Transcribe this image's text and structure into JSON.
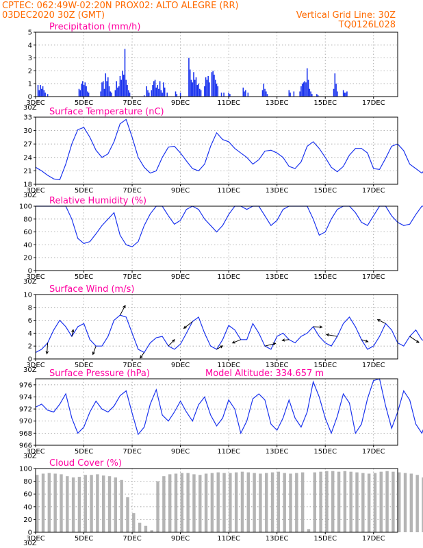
{
  "header": {
    "line1": "CPTEC:   062:49W-02:20N   PROX02: ALTO ALEGRE (RR)",
    "line2_left": "03DEC2020 30Z (GMT)",
    "line2_right": "Vertical Grid Line: 30Z",
    "model": "TQ0126L028"
  },
  "colors": {
    "series": "#1a33ee",
    "bars": "#1a33ee",
    "cloud": "#b4b4b4",
    "header": "#ff6a00",
    "title": "#ff00a0"
  },
  "x_axis": {
    "labels": [
      "3DEC",
      "5DEC",
      "7DEC",
      "9DEC",
      "11DEC",
      "13DEC",
      "15DEC",
      "17DEC"
    ],
    "label_days": [
      0,
      2,
      4,
      6,
      8,
      10,
      12,
      14
    ],
    "stray_label": "30Z",
    "range_days": [
      0,
      15
    ]
  },
  "chart_data": [
    {
      "type": "bar",
      "title": "Precipitation (mm/h)",
      "ylim": [
        0,
        5
      ],
      "yticks": [
        0,
        1,
        2,
        3,
        4,
        5
      ],
      "grid": true,
      "bars": [
        [
          0.1,
          0.9
        ],
        [
          0.15,
          0.5
        ],
        [
          0.2,
          0.9
        ],
        [
          0.25,
          0.6
        ],
        [
          0.3,
          0.8
        ],
        [
          0.35,
          0.5
        ],
        [
          0.4,
          0.3
        ],
        [
          0.5,
          0.2
        ],
        [
          1.8,
          0.6
        ],
        [
          1.85,
          0.5
        ],
        [
          1.9,
          1.0
        ],
        [
          1.95,
          1.2
        ],
        [
          2.0,
          0.9
        ],
        [
          2.05,
          1.1
        ],
        [
          2.1,
          0.8
        ],
        [
          2.15,
          0.4
        ],
        [
          2.2,
          0.3
        ],
        [
          2.7,
          0.4
        ],
        [
          2.75,
          1.1
        ],
        [
          2.8,
          1.2
        ],
        [
          2.85,
          0.6
        ],
        [
          2.9,
          1.8
        ],
        [
          2.95,
          1.2
        ],
        [
          3.0,
          1.5
        ],
        [
          3.05,
          0.8
        ],
        [
          3.1,
          0.4
        ],
        [
          3.15,
          0.3
        ],
        [
          3.3,
          0.5
        ],
        [
          3.35,
          1.2
        ],
        [
          3.4,
          0.7
        ],
        [
          3.45,
          0.8
        ],
        [
          3.5,
          1.6
        ],
        [
          3.55,
          1.3
        ],
        [
          3.6,
          2.0
        ],
        [
          3.65,
          1.7
        ],
        [
          3.7,
          3.7
        ],
        [
          3.75,
          1.3
        ],
        [
          3.8,
          0.9
        ],
        [
          3.85,
          0.5
        ],
        [
          3.9,
          0.3
        ],
        [
          4.5,
          0.1
        ],
        [
          4.6,
          0.8
        ],
        [
          4.65,
          0.5
        ],
        [
          4.7,
          0.3
        ],
        [
          4.8,
          0.5
        ],
        [
          4.85,
          0.9
        ],
        [
          4.9,
          1.2
        ],
        [
          4.95,
          1.3
        ],
        [
          5.0,
          0.7
        ],
        [
          5.05,
          0.9
        ],
        [
          5.1,
          0.6
        ],
        [
          5.15,
          1.2
        ],
        [
          5.2,
          0.5
        ],
        [
          5.25,
          0.3
        ],
        [
          5.3,
          1.1
        ],
        [
          5.35,
          0.7
        ],
        [
          5.45,
          0.3
        ],
        [
          5.8,
          0.4
        ],
        [
          5.85,
          0.2
        ],
        [
          6.0,
          0.3
        ],
        [
          6.35,
          3.0
        ],
        [
          6.4,
          2.1
        ],
        [
          6.45,
          1.3
        ],
        [
          6.5,
          1.1
        ],
        [
          6.55,
          1.9
        ],
        [
          6.6,
          1.3
        ],
        [
          6.65,
          1.5
        ],
        [
          6.7,
          0.9
        ],
        [
          6.75,
          1.0
        ],
        [
          6.8,
          0.6
        ],
        [
          6.85,
          0.5
        ],
        [
          7.0,
          0.8
        ],
        [
          7.05,
          1.5
        ],
        [
          7.1,
          1.3
        ],
        [
          7.15,
          1.6
        ],
        [
          7.2,
          1.1
        ],
        [
          7.3,
          1.9
        ],
        [
          7.35,
          2.0
        ],
        [
          7.4,
          1.7
        ],
        [
          7.45,
          1.3
        ],
        [
          7.5,
          1.0
        ],
        [
          7.55,
          0.8
        ],
        [
          7.7,
          0.3
        ],
        [
          7.8,
          0.3
        ],
        [
          8.0,
          0.3
        ],
        [
          8.05,
          0.2
        ],
        [
          8.6,
          0.7
        ],
        [
          8.65,
          0.4
        ],
        [
          8.7,
          0.5
        ],
        [
          8.8,
          0.3
        ],
        [
          9.4,
          0.5
        ],
        [
          9.45,
          1.0
        ],
        [
          9.5,
          0.6
        ],
        [
          9.55,
          0.4
        ],
        [
          9.6,
          0.2
        ],
        [
          10.5,
          0.5
        ],
        [
          10.55,
          0.3
        ],
        [
          10.7,
          0.4
        ],
        [
          10.95,
          0.4
        ],
        [
          11.0,
          0.8
        ],
        [
          11.05,
          1.0
        ],
        [
          11.1,
          1.1
        ],
        [
          11.15,
          1.2
        ],
        [
          11.2,
          1.1
        ],
        [
          11.25,
          2.2
        ],
        [
          11.3,
          1.3
        ],
        [
          11.35,
          0.6
        ],
        [
          11.4,
          0.4
        ],
        [
          11.45,
          0.2
        ],
        [
          11.65,
          0.2
        ],
        [
          11.7,
          0.1
        ],
        [
          12.35,
          0.6
        ],
        [
          12.4,
          1.8
        ],
        [
          12.45,
          1.0
        ],
        [
          12.5,
          0.4
        ],
        [
          12.75,
          0.5
        ],
        [
          12.8,
          0.3
        ],
        [
          12.85,
          0.3
        ],
        [
          12.9,
          0.4
        ]
      ]
    },
    {
      "type": "line",
      "title": "Surface Temperature (nC)",
      "ylim": [
        18,
        33
      ],
      "yticks": [
        18,
        21,
        24,
        27,
        30,
        33
      ],
      "grid": true,
      "period_days": 0.25,
      "values": [
        21.8,
        21,
        20,
        19.2,
        19,
        22.5,
        27,
        30.2,
        30.7,
        28.5,
        25.6,
        24,
        24.8,
        27.5,
        31.5,
        32.5,
        28.5,
        24,
        21.8,
        20.5,
        21,
        24,
        26.3,
        26.5,
        25,
        23.2,
        21.5,
        21,
        22.5,
        26.5,
        29.5,
        28,
        27.5,
        26,
        25,
        24,
        22.5,
        23.5,
        25.4,
        25.6,
        25,
        24,
        22,
        21.5,
        23,
        26.5,
        27.5,
        26,
        24,
        21.8,
        20.8,
        22,
        24.5,
        26,
        26,
        25,
        21.5,
        21.3,
        23.8,
        26.5,
        27,
        25.5,
        22.5,
        21.5,
        20.5,
        22,
        24.5,
        29,
        30,
        28,
        26,
        24.3,
        21.3,
        20.5,
        22.5,
        27,
        29.5,
        28.5,
        26,
        24.5,
        21.5,
        20.5,
        23,
        27.2,
        31,
        29,
        26.5,
        24.5,
        21.5,
        20.5,
        21.5,
        27.5,
        29,
        26.5,
        25,
        22,
        21.5,
        23,
        27.5,
        29.5,
        28,
        26,
        24,
        21.5,
        21,
        23,
        28,
        30,
        28,
        25,
        22,
        21,
        21.5,
        26,
        29.5,
        30.5,
        27.5,
        25,
        22,
        21,
        22,
        28,
        30.5,
        29.5,
        26.5,
        24,
        21.5,
        21,
        23,
        27.5,
        29.5,
        28,
        26
      ]
    },
    {
      "type": "line",
      "title": "Relative Humidity (%)",
      "ylim": [
        0,
        100
      ],
      "yticks": [
        0,
        20,
        40,
        60,
        80,
        100
      ],
      "grid": true,
      "period_days": 0.25,
      "values": [
        100,
        100,
        100,
        100,
        100,
        100,
        80,
        50,
        42,
        45,
        57,
        70,
        80,
        90,
        55,
        40,
        37,
        45,
        70,
        88,
        100,
        100,
        85,
        72,
        78,
        95,
        100,
        95,
        80,
        70,
        60,
        70,
        87,
        100,
        100,
        95,
        100,
        100,
        85,
        70,
        78,
        95,
        100,
        100,
        100,
        100,
        80,
        55,
        60,
        80,
        95,
        100,
        100,
        90,
        75,
        70,
        85,
        100,
        100,
        85,
        75,
        70,
        72,
        87,
        100,
        100,
        95,
        80,
        65,
        55,
        70,
        90,
        100,
        100,
        80,
        48,
        55,
        75,
        100,
        100,
        95,
        75,
        60,
        72,
        90,
        100,
        100,
        100,
        85,
        55,
        42,
        50,
        80,
        100,
        100,
        85,
        62,
        55,
        70,
        100,
        100,
        95,
        70,
        48,
        45,
        62,
        100,
        100,
        90,
        70,
        100,
        100,
        100,
        100,
        90,
        65,
        50,
        50,
        65,
        72,
        80,
        90,
        60,
        50,
        58,
        75,
        80,
        70,
        60,
        47,
        50
      ]
    },
    {
      "type": "line",
      "title": "Surface Wind (m/s)",
      "ylim": [
        0,
        10
      ],
      "yticks": [
        0,
        2,
        4,
        6,
        8,
        10
      ],
      "grid": true,
      "period_days": 0.25,
      "values": [
        1,
        1.5,
        2.5,
        4.5,
        6,
        5,
        3.5,
        5,
        5.5,
        3,
        2,
        2,
        3.5,
        6,
        6.8,
        6.5,
        4,
        1.5,
        1,
        2.5,
        3.3,
        3.5,
        2,
        1.5,
        2.3,
        4,
        5.8,
        6.5,
        4,
        2,
        1.5,
        3,
        5.2,
        4.5,
        3,
        3,
        5.5,
        4,
        2,
        1.5,
        3.5,
        4,
        3,
        2.5,
        3.5,
        4,
        5,
        3.5,
        2.5,
        2,
        3.5,
        5.5,
        6.5,
        5,
        3,
        1.5,
        2,
        3.5,
        5.5,
        4.5,
        2.5,
        2,
        3.5,
        4.5,
        3,
        2.5,
        2.5,
        3,
        3.5,
        5,
        6.8,
        5,
        2,
        1.5,
        2,
        3,
        4,
        4.5,
        5.5,
        9,
        7.5,
        5,
        3,
        2.5,
        3,
        5,
        6,
        3.5,
        2,
        1.5,
        2.5,
        4.5,
        5,
        4,
        2.5,
        2.5,
        3.5,
        5,
        4.5,
        3,
        2,
        1.5,
        2.5,
        4.5,
        5.5,
        4.5,
        3,
        2.5,
        2,
        2,
        4,
        6,
        5,
        3,
        1.5,
        2,
        3.5,
        5,
        4,
        3,
        2,
        1.5,
        2,
        4,
        5.5,
        4.5,
        3,
        2.5,
        3.5,
        5.5,
        6.5,
        4,
        1.5
      ],
      "arrows_label": "wind direction vectors"
    },
    {
      "type": "line",
      "title": "Surface Pressure (hPa)",
      "annotation": "Model Altitude: 334.657  m",
      "ylim": [
        966,
        977
      ],
      "yticks": [
        966,
        968,
        970,
        972,
        974,
        976
      ],
      "grid": true,
      "period_days": 0.25,
      "values": [
        972.3,
        972.8,
        971.8,
        971.5,
        972.8,
        974.5,
        970.5,
        968,
        969,
        971.5,
        973.3,
        972,
        971.5,
        972.5,
        974.2,
        975,
        971.3,
        967.8,
        969,
        972.8,
        975.2,
        971,
        970,
        971.5,
        973.3,
        971.5,
        970,
        972.7,
        974,
        971,
        969.2,
        970.5,
        973.5,
        972,
        968,
        970,
        973.7,
        974.5,
        973.5,
        969.5,
        968.5,
        970.5,
        973.5,
        970.5,
        969,
        971.5,
        976.5,
        974,
        970.5,
        968,
        970.8,
        974.5,
        973,
        968,
        969.5,
        973.7,
        976.7,
        977,
        972.5,
        968.8,
        971.5,
        975,
        973.5,
        969.5,
        968,
        970.5,
        974.3,
        973,
        968.5,
        971.5,
        975.5,
        972.5,
        968.5,
        967.5,
        970.8,
        974,
        971.5,
        970,
        972,
        973.5,
        971,
        967.5,
        967,
        970,
        972.5,
        970.5,
        967.5,
        969.5,
        972.5,
        973.5,
        970.5,
        968,
        970,
        973,
        971,
        969,
        968.5,
        970,
        972.8,
        971,
        968,
        969.5,
        972.3,
        970.8,
        968.2,
        967.8,
        970.5,
        972.5,
        970.2,
        968,
        969,
        971.5,
        971,
        968,
        969,
        972.5,
        971.5,
        968.5,
        967.2,
        969.5,
        972,
        970.5,
        967.3,
        968.5,
        971.5,
        970,
        968,
        967,
        966.5,
        969.5
      ]
    },
    {
      "type": "area",
      "title": "Cloud Cover (%)",
      "ylim": [
        0,
        100
      ],
      "yticks": [
        0,
        20,
        40,
        60,
        80,
        100
      ],
      "grid": true,
      "period_days": 0.25,
      "values": [
        90,
        92,
        93,
        92,
        91,
        88,
        86,
        87,
        90,
        90,
        91,
        89,
        88,
        86,
        82,
        55,
        30,
        15,
        10,
        3,
        80,
        88,
        91,
        92,
        93,
        93,
        91,
        90,
        92,
        93,
        94,
        93,
        93,
        94,
        95,
        94,
        93,
        92,
        93,
        94,
        95,
        93,
        92,
        93,
        94,
        5,
        94,
        95,
        96,
        96,
        95,
        96,
        95,
        94,
        93,
        92,
        93,
        95,
        96,
        95,
        94,
        93,
        92,
        90,
        86,
        88,
        93,
        95,
        96,
        95,
        94,
        92,
        91,
        92,
        94,
        95,
        94,
        93,
        95,
        96,
        95,
        93,
        91,
        92,
        95,
        96,
        95,
        94,
        92,
        93,
        95,
        96,
        96,
        95,
        94,
        95,
        96,
        95,
        94,
        93,
        95,
        96,
        95,
        94,
        93,
        95,
        96,
        96,
        95,
        94,
        93,
        94,
        95,
        96,
        95,
        92,
        90,
        89,
        93,
        95,
        96,
        95,
        94,
        93,
        95,
        96,
        95,
        94,
        95,
        96,
        95
      ]
    }
  ]
}
